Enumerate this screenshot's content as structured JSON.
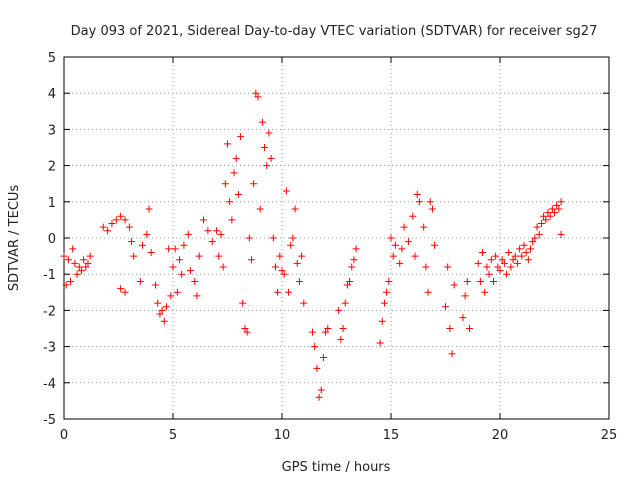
{
  "chart_data": {
    "type": "scatter",
    "title": "Day 093 of 2021, Sidereal Day-to-day VTEC variation (SDTVAR) for receiver sg27",
    "xlabel": "GPS time / hours",
    "ylabel": "SDTVAR / TECUs",
    "xlim": [
      0,
      25
    ],
    "ylim": [
      -5,
      5
    ],
    "xticks": [
      0,
      5,
      10,
      15,
      20,
      25
    ],
    "yticks": [
      -5,
      -4,
      -3,
      -2,
      -1,
      0,
      1,
      2,
      3,
      4,
      5
    ],
    "grid": true,
    "marker": "plus",
    "color": "#ff0000",
    "series": [
      {
        "name": "SDTVAR",
        "points": [
          [
            0.0,
            -0.5
          ],
          [
            0.1,
            -1.3
          ],
          [
            0.2,
            -0.6
          ],
          [
            0.3,
            -1.2
          ],
          [
            0.4,
            -0.3
          ],
          [
            0.5,
            -0.7
          ],
          [
            0.6,
            -1.0
          ],
          [
            0.7,
            -0.8
          ],
          [
            0.8,
            -0.9
          ],
          [
            0.9,
            -0.6
          ],
          [
            1.0,
            -0.8
          ],
          [
            1.1,
            -0.7
          ],
          [
            1.2,
            -0.5
          ],
          [
            1.8,
            0.3
          ],
          [
            2.0,
            0.2
          ],
          [
            2.2,
            0.4
          ],
          [
            2.4,
            0.5
          ],
          [
            2.6,
            0.6
          ],
          [
            2.8,
            0.5
          ],
          [
            3.0,
            0.3
          ],
          [
            3.1,
            -0.1
          ],
          [
            2.6,
            -1.4
          ],
          [
            2.8,
            -1.5
          ],
          [
            3.2,
            -0.5
          ],
          [
            3.5,
            -1.2
          ],
          [
            3.6,
            -0.2
          ],
          [
            3.8,
            0.1
          ],
          [
            3.9,
            0.8
          ],
          [
            4.0,
            -0.4
          ],
          [
            4.2,
            -1.3
          ],
          [
            4.3,
            -1.8
          ],
          [
            4.4,
            -2.1
          ],
          [
            4.5,
            -2.0
          ],
          [
            4.6,
            -2.3
          ],
          [
            4.7,
            -1.9
          ],
          [
            4.8,
            -0.3
          ],
          [
            4.9,
            -1.6
          ],
          [
            5.0,
            -0.8
          ],
          [
            5.1,
            -0.3
          ],
          [
            5.2,
            -1.5
          ],
          [
            5.3,
            -0.6
          ],
          [
            5.4,
            -1.0
          ],
          [
            5.5,
            -0.2
          ],
          [
            5.7,
            0.1
          ],
          [
            5.8,
            -0.9
          ],
          [
            6.0,
            -1.2
          ],
          [
            6.1,
            -1.6
          ],
          [
            6.2,
            -0.5
          ],
          [
            6.4,
            0.5
          ],
          [
            6.6,
            0.2
          ],
          [
            6.8,
            -0.1
          ],
          [
            7.0,
            0.2
          ],
          [
            7.1,
            -0.5
          ],
          [
            7.2,
            0.1
          ],
          [
            7.3,
            -0.8
          ],
          [
            7.4,
            1.5
          ],
          [
            7.5,
            2.6
          ],
          [
            7.6,
            1.0
          ],
          [
            7.7,
            0.5
          ],
          [
            7.8,
            1.8
          ],
          [
            7.9,
            2.2
          ],
          [
            8.0,
            1.2
          ],
          [
            8.1,
            2.8
          ],
          [
            8.2,
            -1.8
          ],
          [
            8.3,
            -2.5
          ],
          [
            8.4,
            -2.6
          ],
          [
            8.5,
            0.0
          ],
          [
            8.6,
            -0.6
          ],
          [
            8.7,
            1.5
          ],
          [
            8.8,
            4.0
          ],
          [
            8.9,
            3.9
          ],
          [
            9.0,
            0.8
          ],
          [
            9.1,
            3.2
          ],
          [
            9.2,
            2.5
          ],
          [
            9.3,
            2.0
          ],
          [
            9.4,
            2.9
          ],
          [
            9.5,
            2.2
          ],
          [
            9.6,
            0.0
          ],
          [
            9.7,
            -0.8
          ],
          [
            9.8,
            -1.5
          ],
          [
            9.9,
            -0.5
          ],
          [
            10.0,
            -0.9
          ],
          [
            10.1,
            -1.0
          ],
          [
            10.2,
            1.3
          ],
          [
            10.3,
            -1.5
          ],
          [
            10.4,
            -0.2
          ],
          [
            10.5,
            0.0
          ],
          [
            10.6,
            0.8
          ],
          [
            10.7,
            -0.7
          ],
          [
            10.8,
            -1.2
          ],
          [
            10.9,
            -0.5
          ],
          [
            11.0,
            -1.8
          ],
          [
            11.4,
            -2.6
          ],
          [
            11.5,
            -3.0
          ],
          [
            11.6,
            -3.6
          ],
          [
            11.7,
            -4.4
          ],
          [
            11.8,
            -4.2
          ],
          [
            11.9,
            -3.3
          ],
          [
            12.0,
            -2.6
          ],
          [
            12.1,
            -2.5
          ],
          [
            12.6,
            -2.0
          ],
          [
            12.7,
            -2.8
          ],
          [
            12.8,
            -2.5
          ],
          [
            12.9,
            -1.8
          ],
          [
            13.0,
            -1.3
          ],
          [
            13.1,
            -1.2
          ],
          [
            13.2,
            -0.8
          ],
          [
            13.3,
            -0.6
          ],
          [
            13.4,
            -0.3
          ],
          [
            14.5,
            -2.9
          ],
          [
            14.6,
            -2.3
          ],
          [
            14.7,
            -1.8
          ],
          [
            14.8,
            -1.5
          ],
          [
            14.9,
            -1.2
          ],
          [
            15.0,
            0.0
          ],
          [
            15.1,
            -0.5
          ],
          [
            15.2,
            -0.2
          ],
          [
            15.4,
            -0.7
          ],
          [
            15.5,
            -0.3
          ],
          [
            15.6,
            0.3
          ],
          [
            15.8,
            -0.1
          ],
          [
            16.0,
            0.6
          ],
          [
            16.1,
            -0.5
          ],
          [
            16.2,
            1.2
          ],
          [
            16.3,
            1.0
          ],
          [
            16.5,
            0.3
          ],
          [
            16.6,
            -0.8
          ],
          [
            16.7,
            -1.5
          ],
          [
            16.8,
            1.0
          ],
          [
            16.9,
            0.8
          ],
          [
            17.0,
            -0.2
          ],
          [
            17.5,
            -1.9
          ],
          [
            17.6,
            -0.8
          ],
          [
            17.7,
            -2.5
          ],
          [
            17.8,
            -3.2
          ],
          [
            17.9,
            -1.3
          ],
          [
            18.3,
            -2.2
          ],
          [
            18.4,
            -1.6
          ],
          [
            18.5,
            -1.2
          ],
          [
            18.6,
            -2.5
          ],
          [
            19.0,
            -0.7
          ],
          [
            19.1,
            -1.2
          ],
          [
            19.2,
            -0.4
          ],
          [
            19.3,
            -1.5
          ],
          [
            19.4,
            -0.8
          ],
          [
            19.5,
            -1.0
          ],
          [
            19.6,
            -0.6
          ],
          [
            19.7,
            -1.2
          ],
          [
            19.8,
            -0.5
          ],
          [
            19.9,
            -0.8
          ],
          [
            20.0,
            -0.9
          ],
          [
            20.1,
            -0.6
          ],
          [
            20.2,
            -0.7
          ],
          [
            20.3,
            -1.0
          ],
          [
            20.4,
            -0.4
          ],
          [
            20.5,
            -0.8
          ],
          [
            20.6,
            -0.6
          ],
          [
            20.7,
            -0.5
          ],
          [
            20.8,
            -0.7
          ],
          [
            20.9,
            -0.3
          ],
          [
            21.0,
            -0.5
          ],
          [
            21.1,
            -0.2
          ],
          [
            21.2,
            -0.4
          ],
          [
            21.3,
            -0.6
          ],
          [
            21.4,
            -0.3
          ],
          [
            21.5,
            -0.1
          ],
          [
            21.6,
            0.0
          ],
          [
            21.7,
            0.3
          ],
          [
            21.8,
            0.1
          ],
          [
            21.9,
            0.4
          ],
          [
            22.0,
            0.6
          ],
          [
            22.1,
            0.5
          ],
          [
            22.2,
            0.7
          ],
          [
            22.3,
            0.6
          ],
          [
            22.4,
            0.8
          ],
          [
            22.5,
            0.7
          ],
          [
            22.6,
            0.9
          ],
          [
            22.7,
            0.8
          ],
          [
            22.8,
            1.0
          ],
          [
            22.8,
            0.1
          ]
        ]
      }
    ]
  }
}
